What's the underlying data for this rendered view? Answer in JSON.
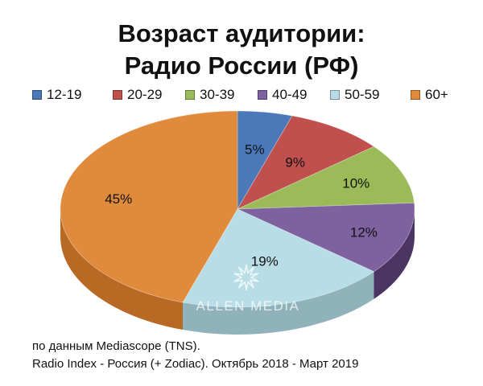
{
  "title": {
    "line1": "Возраст аудитории:",
    "line2": "Радио России (РФ)"
  },
  "footer": {
    "line1": "по данным Mediascope (TNS).",
    "line2": "Radio Index - Россия (+ Zodiac). Октябрь 2018 - Март 2019"
  },
  "watermark": {
    "text": "ALLEN MEDIA",
    "icon": "star-burst-icon"
  },
  "chart_data": {
    "type": "pie",
    "style": "3d",
    "legend_position": "top",
    "categories": [
      "12-19",
      "20-29",
      "30-39",
      "40-49",
      "50-59",
      "60+"
    ],
    "values": [
      5,
      9,
      10,
      12,
      19,
      45
    ],
    "labels": [
      "5%",
      "9%",
      "10%",
      "12%",
      "19%",
      "45%"
    ],
    "colors": [
      "#4a78b8",
      "#c0504d",
      "#9bbb59",
      "#7e62a0",
      "#b8dde6",
      "#e08a3c"
    ],
    "side_colors": [
      "#2e4f80",
      "#8a3532",
      "#6a8436",
      "#4a3563",
      "#8fb2bb",
      "#b86a25"
    ]
  }
}
